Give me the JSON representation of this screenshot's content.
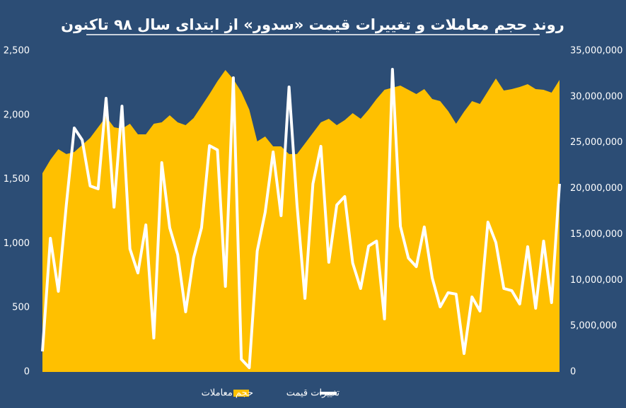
{
  "chart_data": {
    "type": "combo",
    "title": "روند حجم معاملات و تغییرات قیمت «سدور» از ابتدای سال ۹۸ تاکنون",
    "ylim": [
      0,
      2500
    ],
    "yticks": [
      0,
      500,
      {
        "value": 1000,
        "label": "1,000"
      },
      {
        "value": 1500,
        "label": "1,500"
      },
      {
        "value": 2000,
        "label": "2,000"
      },
      {
        "value": 2500,
        "label": "2,500"
      }
    ],
    "y2lim": [
      0,
      35000000
    ],
    "y2ticks": [
      0,
      {
        "value": 5000000,
        "label": "5,000,000"
      },
      {
        "value": 10000000,
        "label": "10,000,000"
      },
      {
        "value": 15000000,
        "label": "15,000,000"
      },
      {
        "value": 20000000,
        "label": "20,000,000"
      },
      {
        "value": 25000000,
        "label": "25,000,000"
      },
      {
        "value": 30000000,
        "label": "30,000,000"
      },
      {
        "value": 35000000,
        "label": "35,000,000"
      }
    ],
    "grid": false,
    "legend": "bottom",
    "series": [
      {
        "name": "حجم معاملات",
        "type": "area",
        "axis": "y2",
        "color": "#ffc000",
        "values": [
          21660000,
          23130000,
          24280000,
          23750000,
          23980000,
          24750000,
          25520000,
          26670000,
          27830000,
          26670000,
          26520000,
          27060000,
          25900000,
          25900000,
          27060000,
          27210000,
          27980000,
          27210000,
          26910000,
          27680000,
          28990000,
          30300000,
          31690000,
          32920000,
          31920000,
          30530000,
          28600000,
          25130000,
          25670000,
          24590000,
          24590000,
          23750000,
          23750000,
          24900000,
          26060000,
          27210000,
          27600000,
          26910000,
          27450000,
          28220000,
          27600000,
          28600000,
          29760000,
          30760000,
          30990000,
          31220000,
          30760000,
          30300000,
          30840000,
          29760000,
          29530000,
          28450000,
          27060000,
          28370000,
          29530000,
          29220000,
          30610000,
          31990000,
          30680000,
          30840000,
          31070000,
          31380000,
          30840000,
          30760000,
          30450000,
          31840000
        ]
      },
      {
        "name": "تغییرات قیمت",
        "type": "line",
        "color": "#ffffff",
        "values": [
          160,
          1041,
          628,
          1300,
          1900,
          1806,
          1448,
          1426,
          2131,
          1283,
          2070,
          958,
          771,
          1145,
          264,
          1630,
          1123,
          914,
          468,
          887,
          1123,
          1762,
          1729,
          666,
          2291,
          99,
          33,
          942,
          1244,
          1713,
          1217,
          2219,
          1300,
          573,
          1465,
          1757,
          854,
          1300,
          1366,
          848,
          650,
          980,
          1019,
          413,
          2357,
          1134,
          887,
          820,
          1129,
          732,
          507,
          617,
          606,
          143,
          584,
          474,
          1167,
          1008,
          650,
          633,
          529,
          975,
          496,
          1019,
          540,
          1465
        ]
      }
    ]
  }
}
